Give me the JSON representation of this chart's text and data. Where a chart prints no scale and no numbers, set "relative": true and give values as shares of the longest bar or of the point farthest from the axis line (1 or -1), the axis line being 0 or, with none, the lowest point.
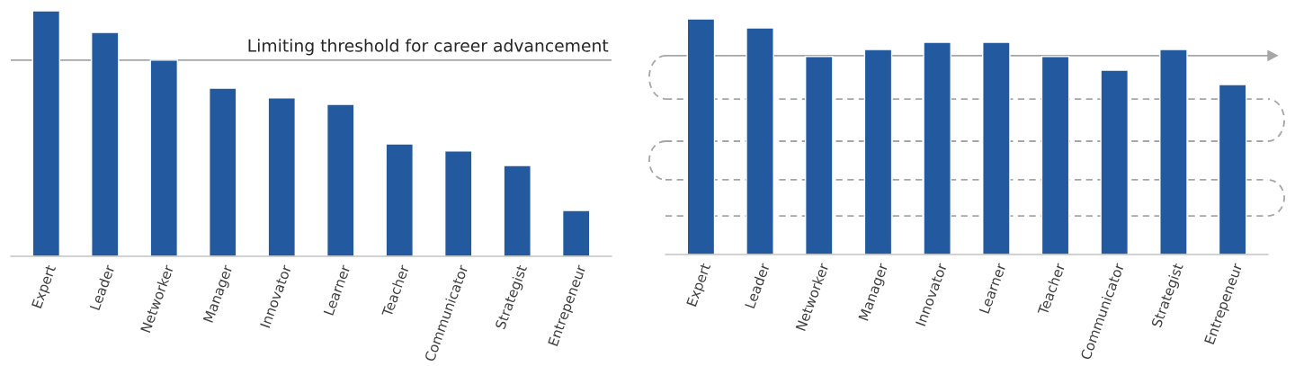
{
  "chart_data": [
    {
      "type": "bar",
      "relative": true,
      "color": "#235a9f",
      "categories": [
        "Expert",
        "Leader",
        "Networker",
        "Manager",
        "Innovator",
        "Learner",
        "Teacher",
        "Communicator",
        "Strategist",
        "Entrepeneur"
      ],
      "values": [
        1,
        0.912,
        0.799,
        0.685,
        0.645,
        0.619,
        0.458,
        0.429,
        0.37,
        0.187
      ],
      "ref_lines": [
        {
          "axis": "y",
          "value": 0.799,
          "label": "Limiting threshold for career advancement",
          "color": "#a6a6a6",
          "line_style": "solid"
        }
      ]
    },
    {
      "type": "bar",
      "relative": true,
      "color": "#235a9f",
      "categories": [
        "Expert",
        "Leader",
        "Networker",
        "Manager",
        "Innovator",
        "Learner",
        "Teacher",
        "Communicator",
        "Strategist",
        "Entrepeneur"
      ],
      "values": [
        1,
        0.962,
        0.84,
        0.87,
        0.901,
        0.901,
        0.84,
        0.782,
        0.87,
        0.721
      ],
      "ref_lines": [
        {
          "axis": "y",
          "value": 0.844,
          "color": "#a6a6a6",
          "line_style": "solid"
        },
        {
          "axis": "y",
          "value": 0.66,
          "color": "#a6a6a6",
          "line_style": "dashed"
        },
        {
          "axis": "y",
          "value": 0.481,
          "color": "#a6a6a6",
          "line_style": "dashed"
        },
        {
          "axis": "y",
          "value": 0.317,
          "color": "#a6a6a6",
          "line_style": "dashed"
        },
        {
          "axis": "y",
          "value": 0.164,
          "color": "#a6a6a6",
          "line_style": "dashed"
        }
      ]
    }
  ]
}
